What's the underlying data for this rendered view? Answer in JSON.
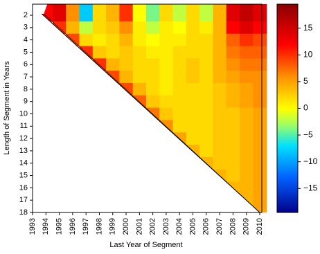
{
  "chart_data": {
    "type": "heatmap",
    "x_label": "Last Year of Segment",
    "y_label": "Length of Segment in Years",
    "x": [
      1993,
      1994,
      1995,
      1996,
      1997,
      1998,
      1999,
      2000,
      2001,
      2002,
      2003,
      2004,
      2005,
      2006,
      2007,
      2008,
      2009,
      2010
    ],
    "y": [
      2,
      3,
      4,
      5,
      6,
      7,
      8,
      9,
      10,
      11,
      12,
      13,
      14,
      15,
      16,
      17,
      18
    ],
    "z": [
      [
        null,
        12,
        14,
        6,
        -8,
        2,
        4,
        10,
        0,
        -4,
        2,
        -2,
        2,
        -2,
        4,
        14,
        16,
        14
      ],
      [
        null,
        null,
        10,
        4,
        -2,
        2,
        3,
        6,
        1,
        -2,
        1,
        0,
        2,
        1,
        4,
        12,
        14,
        12
      ],
      [
        null,
        null,
        null,
        9,
        2,
        1,
        2,
        4,
        1,
        0,
        1,
        1,
        2,
        2,
        4,
        8,
        10,
        9
      ],
      [
        null,
        null,
        null,
        null,
        10,
        3,
        2,
        3,
        2,
        1,
        1,
        2,
        2,
        2,
        4,
        7,
        8,
        8
      ],
      [
        null,
        null,
        null,
        null,
        null,
        10,
        4,
        3,
        2,
        2,
        1,
        2,
        3,
        2,
        4,
        6,
        7,
        7
      ],
      [
        null,
        null,
        null,
        null,
        null,
        null,
        9,
        4,
        2,
        2,
        1,
        2,
        3,
        2,
        4,
        5,
        6,
        6
      ],
      [
        null,
        null,
        null,
        null,
        null,
        null,
        null,
        9,
        4,
        2,
        1,
        2,
        2,
        2,
        3,
        4,
        5,
        6
      ],
      [
        null,
        null,
        null,
        null,
        null,
        null,
        null,
        null,
        8,
        3,
        2,
        2,
        2,
        2,
        3,
        4,
        5,
        6
      ],
      [
        null,
        null,
        null,
        null,
        null,
        null,
        null,
        null,
        null,
        7,
        3,
        2,
        2,
        2,
        3,
        3,
        4,
        5
      ],
      [
        null,
        null,
        null,
        null,
        null,
        null,
        null,
        null,
        null,
        null,
        6,
        2,
        2,
        2,
        3,
        3,
        4,
        5
      ],
      [
        null,
        null,
        null,
        null,
        null,
        null,
        null,
        null,
        null,
        null,
        null,
        5,
        2,
        2,
        3,
        3,
        4,
        5
      ],
      [
        null,
        null,
        null,
        null,
        null,
        null,
        null,
        null,
        null,
        null,
        null,
        null,
        4,
        2,
        3,
        3,
        4,
        5
      ],
      [
        null,
        null,
        null,
        null,
        null,
        null,
        null,
        null,
        null,
        null,
        null,
        null,
        null,
        4,
        3,
        3,
        4,
        5
      ],
      [
        null,
        null,
        null,
        null,
        null,
        null,
        null,
        null,
        null,
        null,
        null,
        null,
        null,
        null,
        4,
        3,
        4,
        5
      ],
      [
        null,
        null,
        null,
        null,
        null,
        null,
        null,
        null,
        null,
        null,
        null,
        null,
        null,
        null,
        null,
        4,
        4,
        5
      ],
      [
        null,
        null,
        null,
        null,
        null,
        null,
        null,
        null,
        null,
        null,
        null,
        null,
        null,
        null,
        null,
        null,
        4,
        5
      ],
      [
        null,
        null,
        null,
        null,
        null,
        null,
        null,
        null,
        null,
        null,
        null,
        null,
        null,
        null,
        null,
        null,
        null,
        5
      ]
    ],
    "xlim": [
      1993,
      2010
    ],
    "xticks": [
      1993,
      1994,
      1995,
      1996,
      1997,
      1998,
      1999,
      2000,
      2001,
      2002,
      2003,
      2004,
      2005,
      2006,
      2007,
      2008,
      2009,
      2010
    ],
    "ylim": [
      18,
      1.1
    ],
    "yticks": [
      2,
      3,
      4,
      5,
      6,
      7,
      8,
      9,
      10,
      11,
      12,
      13,
      14,
      15,
      16,
      17,
      18
    ],
    "zlim": [
      -19.5,
      19.5
    ],
    "zticks": [
      {
        "value": -15,
        "label": "−15"
      },
      {
        "value": -10,
        "label": "−10"
      },
      {
        "value": -5,
        "label": "−5"
      },
      0,
      5,
      10,
      15
    ],
    "colormap": [
      [
        -19.5,
        "#00008b"
      ],
      [
        -13,
        "#0060ff"
      ],
      [
        -7,
        "#00e0ff"
      ],
      [
        -3,
        "#a0ff60"
      ],
      [
        0,
        "#ffff00"
      ],
      [
        6,
        "#ff9000"
      ],
      [
        12,
        "#ff0000"
      ],
      [
        19.5,
        "#8b0000"
      ]
    ]
  }
}
